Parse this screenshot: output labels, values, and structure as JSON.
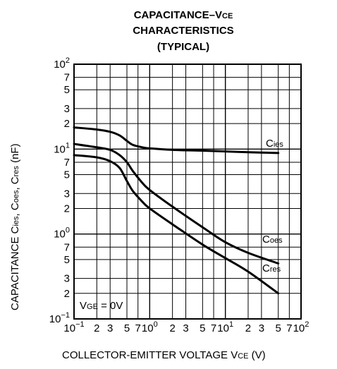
{
  "chart_data": {
    "type": "line",
    "title": {
      "line1": "CAPACITANCE–VCE",
      "line2": "CHARACTERISTICS",
      "line3": "(TYPICAL)"
    },
    "xlabel": "COLLECTOR-EMITTER VOLTAGE VCE (V)",
    "ylabel": "CAPACITANCE Cies, Coes, Cres (nF)",
    "x_scale": "log",
    "y_scale": "log",
    "xlim": [
      0.1,
      100
    ],
    "ylim": [
      0.1,
      100
    ],
    "grid": true,
    "x_ticks": [
      "10−1",
      "2",
      "3",
      "5",
      "7",
      "100",
      "2",
      "3",
      "5",
      "7",
      "101",
      "2",
      "3",
      "5",
      "7",
      "102"
    ],
    "y_ticks": [
      "102",
      "7",
      "5",
      "3",
      "2",
      "101",
      "7",
      "5",
      "3",
      "2",
      "100",
      "7",
      "5",
      "3",
      "2",
      "10−1"
    ],
    "condition": "VGE = 0V",
    "series": [
      {
        "name": "Cies",
        "x": [
          0.1,
          0.2,
          0.3,
          0.4,
          0.5,
          0.6,
          0.8,
          1,
          2,
          5,
          10,
          20,
          50
        ],
        "y": [
          18,
          17,
          16,
          14.5,
          12.5,
          11.2,
          10.5,
          10.2,
          9.8,
          9.6,
          9.4,
          9.2,
          9.0
        ]
      },
      {
        "name": "Coes",
        "x": [
          0.1,
          0.2,
          0.3,
          0.4,
          0.5,
          0.6,
          0.8,
          1,
          2,
          5,
          10,
          20,
          50
        ],
        "y": [
          11.5,
          10.5,
          9.8,
          8.5,
          7,
          5.5,
          4.0,
          3.3,
          2.1,
          1.2,
          0.8,
          0.6,
          0.45
        ]
      },
      {
        "name": "Cres",
        "x": [
          0.1,
          0.2,
          0.3,
          0.4,
          0.5,
          0.6,
          0.8,
          1,
          2,
          5,
          10,
          20,
          50
        ],
        "y": [
          8.5,
          8,
          7.2,
          6,
          4.2,
          3.2,
          2.4,
          2.0,
          1.3,
          0.75,
          0.52,
          0.36,
          0.2
        ]
      }
    ]
  }
}
